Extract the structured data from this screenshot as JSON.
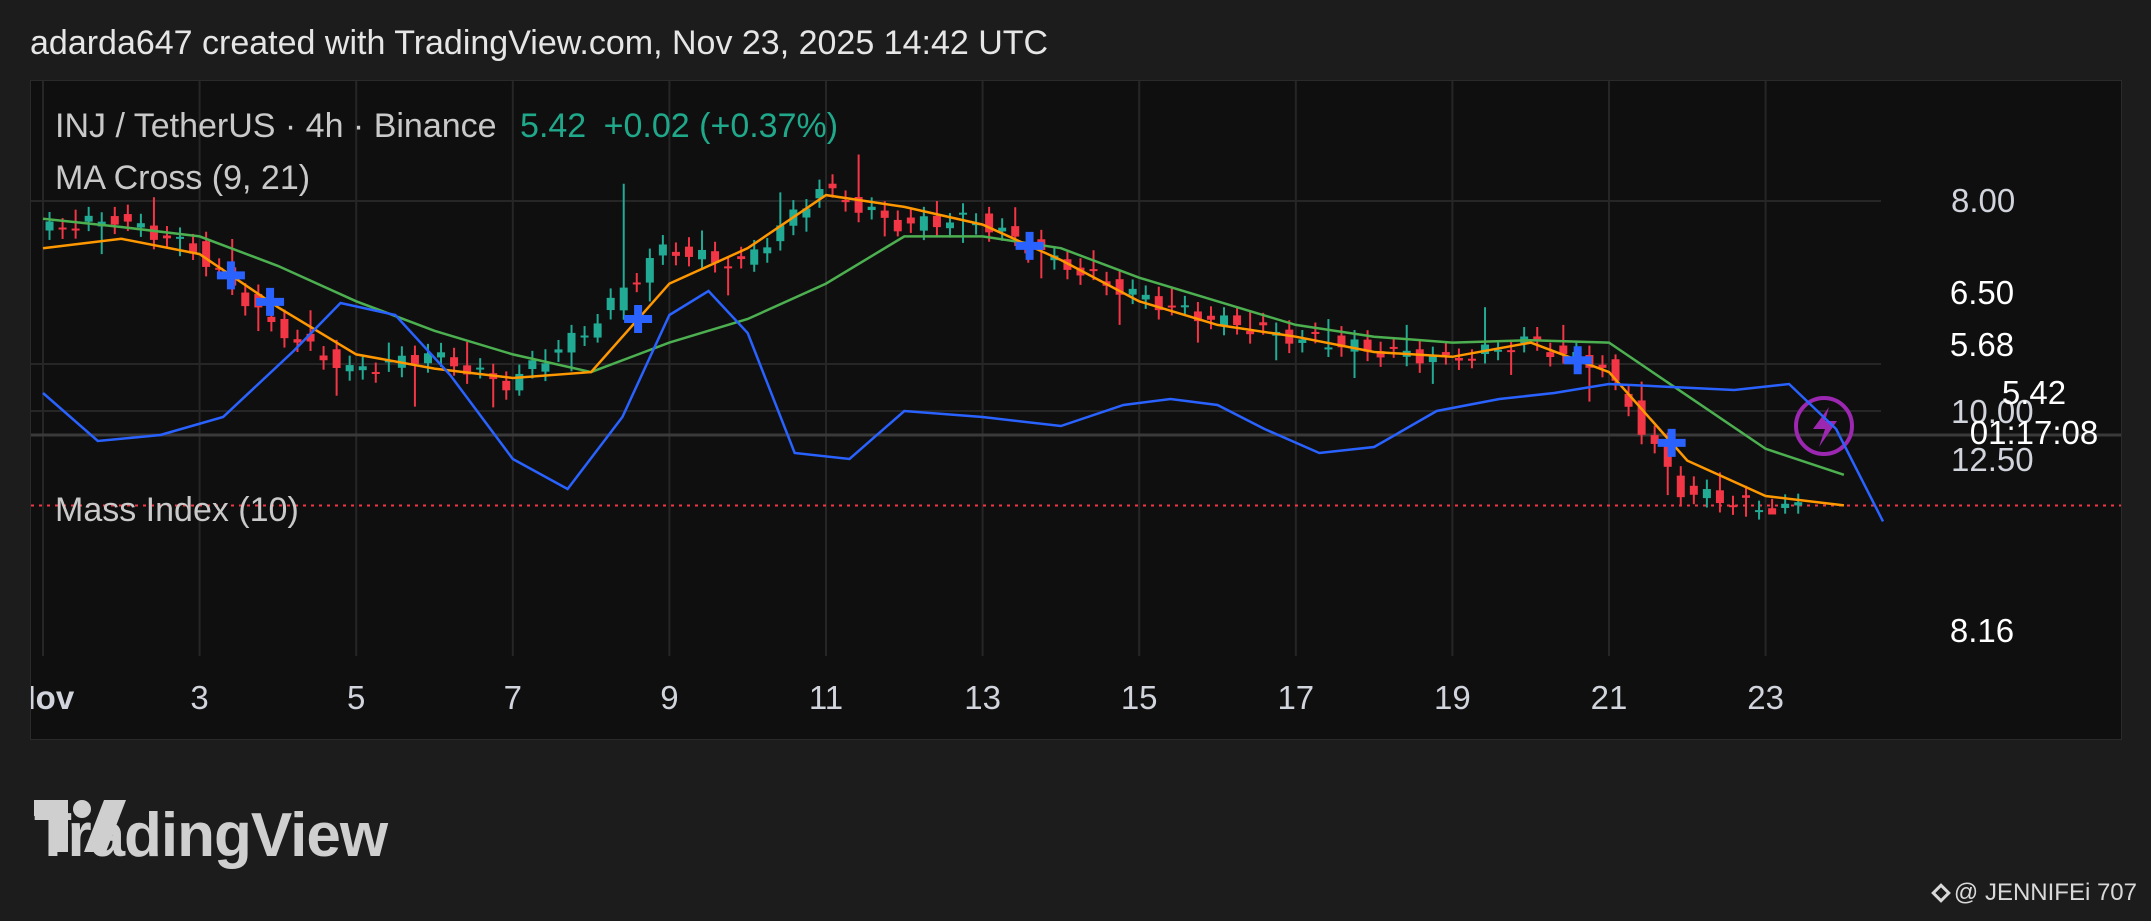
{
  "header": "adarda647 created with TradingView.com, Nov 23, 2025 14:42 UTC",
  "legend": {
    "symbol": "INJ / TetherUS · 4h · Binance",
    "last_price": "5.42",
    "change": "+0.02 (+0.37%)",
    "ma_cross": "MA Cross (9, 21)",
    "mass_index": "Mass Index (10)"
  },
  "badges": {
    "ma_blue": "6.50",
    "ma_green": "5.68",
    "last": "5.42",
    "countdown": "01:17:08",
    "mass_value": "8.16"
  },
  "branding": {
    "logo_text": "TradingView",
    "watermark": "@ JENNIFEi 707"
  },
  "colors": {
    "up": "#22ab94",
    "down": "#f23645",
    "ma_fast": "#ff9800",
    "ma_slow": "#4caf50",
    "mass": "#2962ff",
    "cross": "#2962ff",
    "badge_blue": "#2962ff",
    "badge_green": "#4caf50",
    "badge_red": "#f23645"
  },
  "chart_data": {
    "type": "candlestick",
    "symbol": "INJ/USDT",
    "interval": "4h",
    "exchange": "Binance",
    "x_ticks": [
      "Nov",
      "3",
      "5",
      "7",
      "9",
      "11",
      "13",
      "15",
      "17",
      "19",
      "21",
      "23"
    ],
    "price_axis_ticks": [
      "8.00"
    ],
    "last_price": 5.42,
    "price_ohlc_daily": [
      {
        "d": "Nov 1",
        "o": 7.75,
        "h": 7.95,
        "l": 7.55,
        "c": 7.85
      },
      {
        "d": "Nov 2",
        "o": 7.85,
        "h": 8.05,
        "l": 7.5,
        "c": 7.6
      },
      {
        "d": "Nov 3",
        "o": 7.6,
        "h": 7.8,
        "l": 6.8,
        "c": 6.95
      },
      {
        "d": "Nov 4",
        "o": 6.95,
        "h": 7.1,
        "l": 6.35,
        "c": 6.55
      },
      {
        "d": "Nov 5",
        "o": 6.55,
        "h": 6.8,
        "l": 6.2,
        "c": 6.7
      },
      {
        "d": "Nov 6",
        "o": 6.7,
        "h": 6.85,
        "l": 6.25,
        "c": 6.45
      },
      {
        "d": "Nov 7",
        "o": 6.45,
        "h": 6.95,
        "l": 6.35,
        "c": 6.9
      },
      {
        "d": "Nov 8",
        "o": 6.9,
        "h": 8.6,
        "l": 6.8,
        "c": 7.6
      },
      {
        "d": "Nov 9",
        "o": 7.6,
        "h": 7.75,
        "l": 7.2,
        "c": 7.45
      },
      {
        "d": "Nov 10",
        "o": 7.45,
        "h": 8.35,
        "l": 7.4,
        "c": 8.1
      },
      {
        "d": "Nov 11",
        "o": 8.1,
        "h": 8.45,
        "l": 7.7,
        "c": 7.8
      },
      {
        "d": "Nov 12",
        "o": 7.8,
        "h": 8.0,
        "l": 7.6,
        "c": 7.85
      },
      {
        "d": "Nov 13",
        "o": 7.85,
        "h": 7.95,
        "l": 7.3,
        "c": 7.5
      },
      {
        "d": "Nov 14",
        "o": 7.5,
        "h": 7.6,
        "l": 6.95,
        "c": 7.2
      },
      {
        "d": "Nov 15",
        "o": 7.2,
        "h": 7.3,
        "l": 6.8,
        "c": 7.0
      },
      {
        "d": "Nov 16",
        "o": 7.0,
        "h": 7.1,
        "l": 6.65,
        "c": 6.85
      },
      {
        "d": "Nov 17",
        "o": 6.85,
        "h": 7.05,
        "l": 6.5,
        "c": 6.75
      },
      {
        "d": "Nov 18",
        "o": 6.75,
        "h": 6.95,
        "l": 6.45,
        "c": 6.65
      },
      {
        "d": "Nov 19",
        "o": 6.65,
        "h": 7.1,
        "l": 6.5,
        "c": 6.8
      },
      {
        "d": "Nov 20",
        "o": 6.8,
        "h": 6.95,
        "l": 6.3,
        "c": 6.6
      },
      {
        "d": "Nov 21",
        "o": 6.6,
        "h": 6.7,
        "l": 5.35,
        "c": 5.55
      },
      {
        "d": "Nov 22",
        "o": 5.55,
        "h": 5.7,
        "l": 5.3,
        "c": 5.4
      },
      {
        "d": "Nov 23",
        "o": 5.4,
        "h": 5.52,
        "l": 5.35,
        "c": 5.42
      }
    ],
    "ma_fast_9": [
      7.6,
      7.68,
      7.55,
      7.1,
      6.7,
      6.58,
      6.5,
      6.55,
      7.3,
      7.6,
      8.05,
      7.95,
      7.8,
      7.5,
      7.15,
      6.95,
      6.85,
      6.72,
      6.68,
      6.8,
      6.55,
      5.8,
      5.5,
      5.42
    ],
    "ma_slow_21": [
      7.85,
      7.78,
      7.7,
      7.45,
      7.15,
      6.9,
      6.7,
      6.55,
      6.8,
      7.0,
      7.3,
      7.7,
      7.7,
      7.6,
      7.35,
      7.15,
      6.95,
      6.85,
      6.8,
      6.82,
      6.8,
      6.35,
      5.9,
      5.68
    ],
    "cross_markers_days": [
      2.4,
      2.9,
      7.6,
      12.6,
      19.6,
      20.8
    ],
    "mass_index_axis_ticks": [
      "12.50",
      "10.00"
    ],
    "mass_index": [
      {
        "d": 0.0,
        "v": 10.3
      },
      {
        "d": 0.7,
        "v": 9.5
      },
      {
        "d": 1.5,
        "v": 9.6
      },
      {
        "d": 2.3,
        "v": 9.9
      },
      {
        "d": 3.2,
        "v": 11.0
      },
      {
        "d": 3.8,
        "v": 11.8
      },
      {
        "d": 4.5,
        "v": 11.6
      },
      {
        "d": 5.2,
        "v": 10.6
      },
      {
        "d": 6.0,
        "v": 9.2
      },
      {
        "d": 6.7,
        "v": 8.7
      },
      {
        "d": 7.4,
        "v": 9.9
      },
      {
        "d": 8.0,
        "v": 11.6
      },
      {
        "d": 8.5,
        "v": 12.0
      },
      {
        "d": 9.0,
        "v": 11.3
      },
      {
        "d": 9.6,
        "v": 9.3
      },
      {
        "d": 10.3,
        "v": 9.2
      },
      {
        "d": 11.0,
        "v": 10.0
      },
      {
        "d": 12.0,
        "v": 9.9
      },
      {
        "d": 13.0,
        "v": 9.75
      },
      {
        "d": 13.8,
        "v": 10.1
      },
      {
        "d": 14.4,
        "v": 10.2
      },
      {
        "d": 15.0,
        "v": 10.1
      },
      {
        "d": 15.6,
        "v": 9.7
      },
      {
        "d": 16.3,
        "v": 9.3
      },
      {
        "d": 17.0,
        "v": 9.4
      },
      {
        "d": 17.8,
        "v": 10.0
      },
      {
        "d": 18.6,
        "v": 10.2
      },
      {
        "d": 19.3,
        "v": 10.3
      },
      {
        "d": 20.0,
        "v": 10.45
      },
      {
        "d": 20.8,
        "v": 10.4
      },
      {
        "d": 21.6,
        "v": 10.35
      },
      {
        "d": 22.3,
        "v": 10.45
      },
      {
        "d": 22.9,
        "v": 9.7
      },
      {
        "d": 23.5,
        "v": 8.16
      }
    ]
  }
}
